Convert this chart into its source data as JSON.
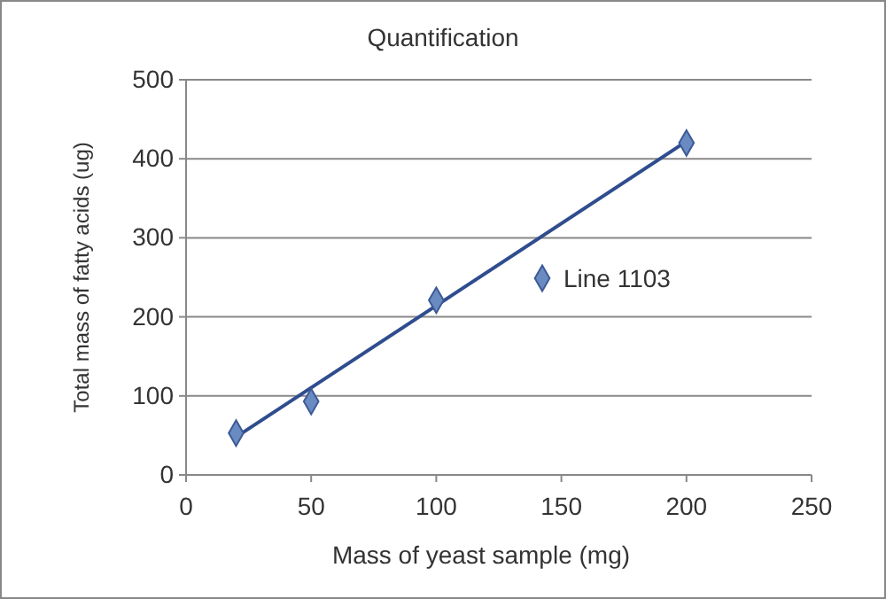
{
  "chart_data": {
    "type": "scatter",
    "title": "Quantification",
    "xlabel": "Mass of yeast sample (mg)",
    "ylabel": "Total mass of fatty acids (ug)",
    "xlim": [
      0,
      250
    ],
    "xticks": [
      0,
      50,
      100,
      150,
      200,
      250
    ],
    "ylim": [
      0,
      500
    ],
    "yticks": [
      0,
      100,
      200,
      300,
      400,
      500
    ],
    "grid": "y",
    "legend": "right",
    "series": [
      {
        "name": "Line 1103",
        "marker": "diamond",
        "color": "#6a8ac2",
        "x": [
          20,
          50,
          100,
          200
        ],
        "values": [
          53,
          93,
          221,
          420
        ]
      },
      {
        "type": "line",
        "marker": "none",
        "color": "#2f4d8e",
        "x": [
          20,
          200
        ],
        "values": [
          48,
          422
        ]
      }
    ]
  }
}
